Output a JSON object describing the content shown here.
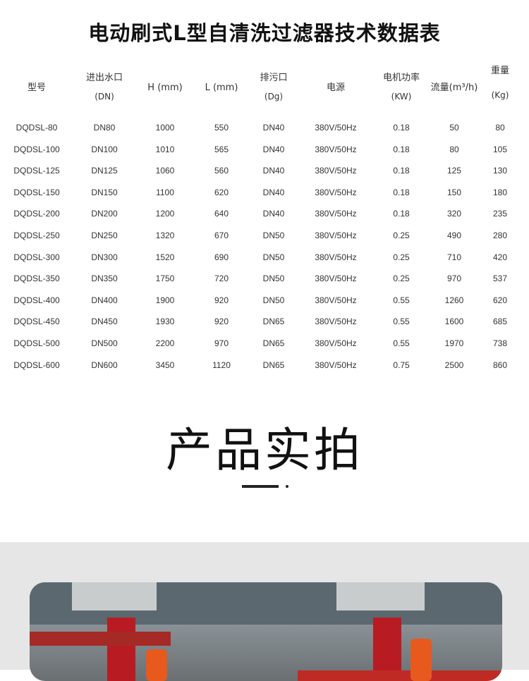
{
  "title": "电动刷式L型自清洗过滤器技术数据表",
  "table": {
    "headers": [
      {
        "line1": "型号",
        "line2": ""
      },
      {
        "line1": "进出水口",
        "line2": "(DN)"
      },
      {
        "line1": "H (mm)",
        "line2": ""
      },
      {
        "line1": "L (mm)",
        "line2": ""
      },
      {
        "line1": "排污口",
        "line2": "(Dg)"
      },
      {
        "line1": "电源",
        "line2": ""
      },
      {
        "line1": "电机功率",
        "line2": "(KW)"
      },
      {
        "line1": "流量(m³/h)",
        "line2": ""
      },
      {
        "line1": "重量",
        "line2": "(Kg)"
      }
    ],
    "rows": [
      [
        "DQDSL-80",
        "DN80",
        "1000",
        "550",
        "DN40",
        "380V/50Hz",
        "0.18",
        "50",
        "80"
      ],
      [
        "DQDSL-100",
        "DN100",
        "1010",
        "565",
        "DN40",
        "380V/50Hz",
        "0.18",
        "80",
        "105"
      ],
      [
        "DQDSL-125",
        "DN125",
        "1060",
        "560",
        "DN40",
        "380V/50Hz",
        "0.18",
        "125",
        "130"
      ],
      [
        "DQDSL-150",
        "DN150",
        "1100",
        "620",
        "DN40",
        "380V/50Hz",
        "0.18",
        "150",
        "180"
      ],
      [
        "DQDSL-200",
        "DN200",
        "1200",
        "640",
        "DN40",
        "380V/50Hz",
        "0.18",
        "320",
        "235"
      ],
      [
        "DQDSL-250",
        "DN250",
        "1320",
        "670",
        "DN50",
        "380V/50Hz",
        "0.25",
        "490",
        "280"
      ],
      [
        "DQDSL-300",
        "DN300",
        "1520",
        "690",
        "DN50",
        "380V/50Hz",
        "0.25",
        "710",
        "420"
      ],
      [
        "DQDSL-350",
        "DN350",
        "1750",
        "720",
        "DN50",
        "380V/50Hz",
        "0.25",
        "970",
        "537"
      ],
      [
        "DQDSL-400",
        "DN400",
        "1900",
        "920",
        "DN50",
        "380V/50Hz",
        "0.55",
        "1260",
        "620"
      ],
      [
        "DQDSL-450",
        "DN450",
        "1930",
        "920",
        "DN65",
        "380V/50Hz",
        "0.55",
        "1600",
        "685"
      ],
      [
        "DQDSL-500",
        "DN500",
        "2200",
        "970",
        "DN65",
        "380V/50Hz",
        "0.55",
        "1970",
        "738"
      ],
      [
        "DQDSL-600",
        "DN600",
        "3450",
        "1120",
        "DN65",
        "380V/50Hz",
        "0.75",
        "2500",
        "860"
      ]
    ]
  },
  "section": {
    "title": "产品实拍"
  }
}
